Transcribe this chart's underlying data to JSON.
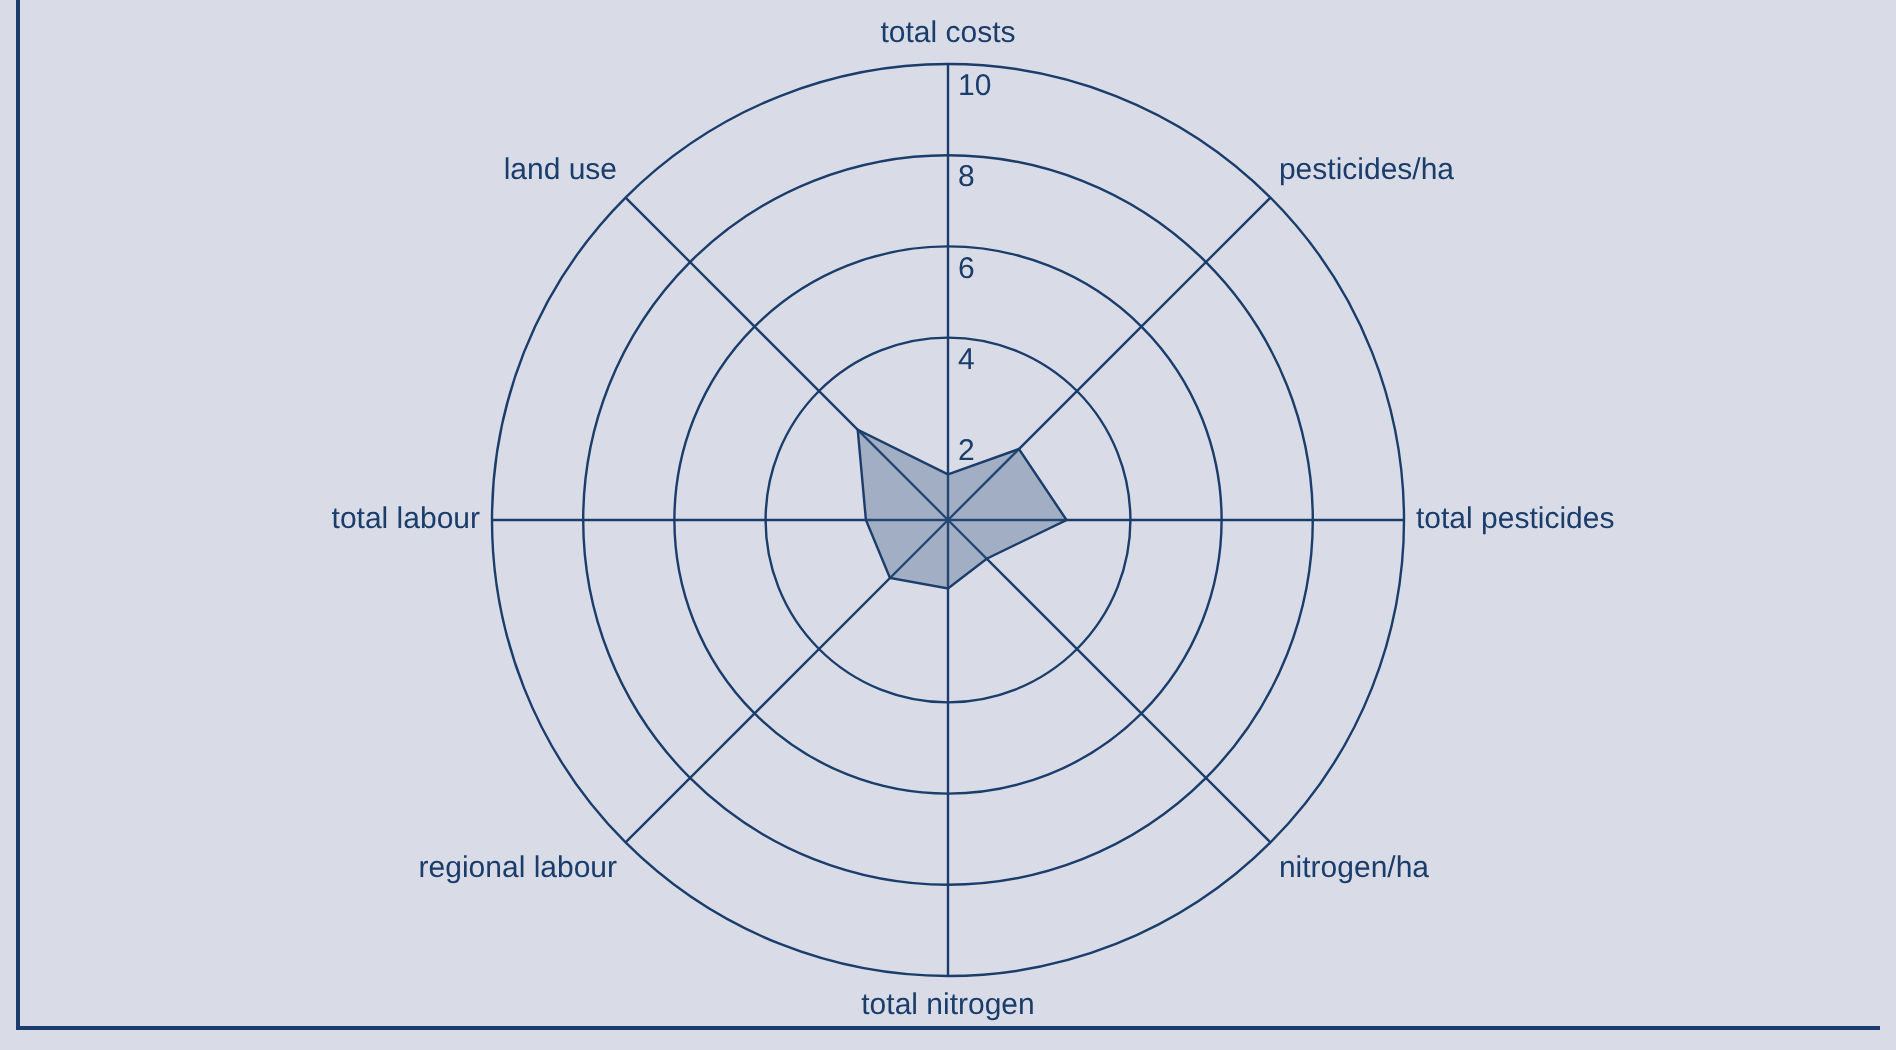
{
  "chart_data": {
    "type": "radar",
    "categories": [
      "total costs",
      "pesticides/ha",
      "total pesticides",
      "nitrogen/ha",
      "total nitrogen",
      "regional labour",
      "total labour",
      "land use"
    ],
    "series": [
      {
        "color": "#3d5a80",
        "values": [
          1.0,
          2.2,
          2.6,
          1.2,
          1.5,
          1.8,
          1.8,
          2.8
        ]
      }
    ],
    "ylim": [
      0,
      10
    ],
    "yticks": [
      2,
      4,
      6,
      8,
      10
    ],
    "grid": true,
    "legend": false
  }
}
